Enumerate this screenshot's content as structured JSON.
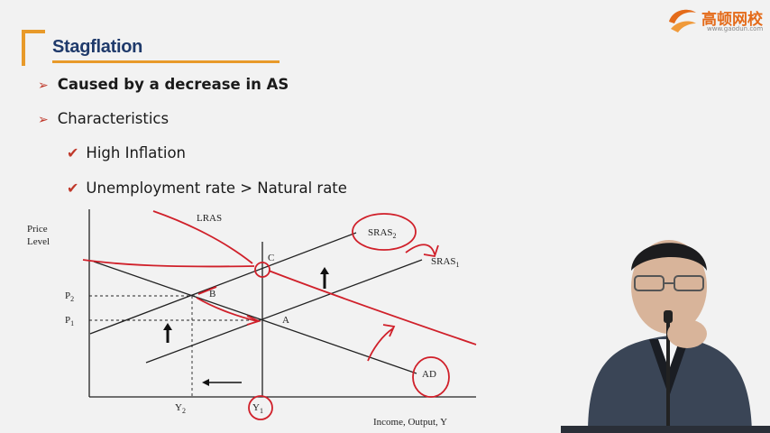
{
  "slide": {
    "title": "Stagflation",
    "bullets": [
      {
        "text": "Caused by a decrease in AS",
        "bold": true
      },
      {
        "text": "Characteristics",
        "bold": false
      }
    ],
    "checks": [
      "High Inflation",
      "Unemployment rate > Natural rate"
    ]
  },
  "logo": {
    "name": "高顿网校",
    "url": "www.gaodun.com",
    "color": "#e46b1a"
  },
  "diagram": {
    "y_axis_label_1": "Price",
    "y_axis_label_2": "Level",
    "x_axis_label": "Income, Output, Y",
    "curves": {
      "lras": "LRAS",
      "sras2": "SRAS",
      "sras2_sub": "2",
      "sras1": "SRAS",
      "sras1_sub": "1",
      "ad": "AD"
    },
    "points": {
      "c": "C",
      "b": "B",
      "a": "A"
    },
    "price_ticks": {
      "p2": "P",
      "p2_sub": "2",
      "p1": "P",
      "p1_sub": "1"
    },
    "output_ticks": {
      "y2": "Y",
      "y2_sub": "2",
      "y1": "Y",
      "y1_sub": "1"
    }
  },
  "colors": {
    "annotation_red": "#d0202a",
    "title_blue": "#1f3a6b",
    "accent_orange": "#e89a2a"
  }
}
